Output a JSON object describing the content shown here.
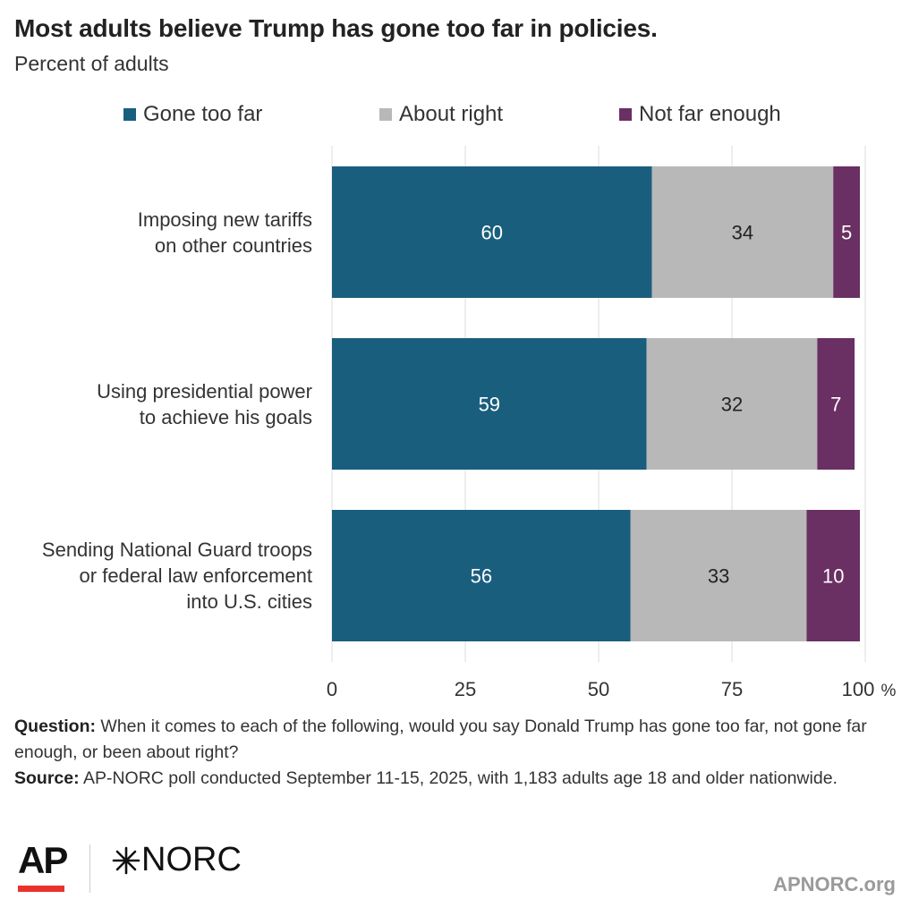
{
  "header": {
    "title": "Most adults believe Trump has gone too far in policies.",
    "subtitle": "Percent of adults"
  },
  "chart_data": {
    "type": "bar",
    "orientation": "horizontal",
    "stacked": true,
    "categories": [
      [
        "Imposing new tariffs",
        "on other countries"
      ],
      [
        "Using presidential power",
        "to achieve his goals"
      ],
      [
        "Sending National Guard troops",
        "or federal law enforcement",
        "into U.S. cities"
      ]
    ],
    "series": [
      {
        "name": "Gone too far",
        "color": "#1a5e7e",
        "label_color": "#ffffff",
        "values": [
          60,
          59,
          56
        ]
      },
      {
        "name": "About right",
        "color": "#b8b8b8",
        "label_color": "#222222",
        "values": [
          34,
          32,
          33
        ]
      },
      {
        "name": "Not far enough",
        "color": "#6a2f63",
        "label_color": "#ffffff",
        "values": [
          5,
          7,
          10
        ]
      }
    ],
    "xlim": [
      0,
      100
    ],
    "xticks": [
      0,
      25,
      50,
      75,
      100
    ],
    "xtick_suffix": " %",
    "grid": true,
    "legend_position": "top"
  },
  "footnote": {
    "question_label": "Question:",
    "question_text": "When it comes to each of the following, would you say Donald Trump has gone too far, not gone far enough, or been about right?",
    "source_label": "Source:",
    "source_text": "AP-NORC poll conducted September 11-15, 2025, with 1,183 adults age 18 and older nationwide."
  },
  "branding": {
    "ap_logo": "AP",
    "norc_logo": "NORC",
    "norc_icon": "star-burst-icon",
    "site": "APNORC.org"
  }
}
